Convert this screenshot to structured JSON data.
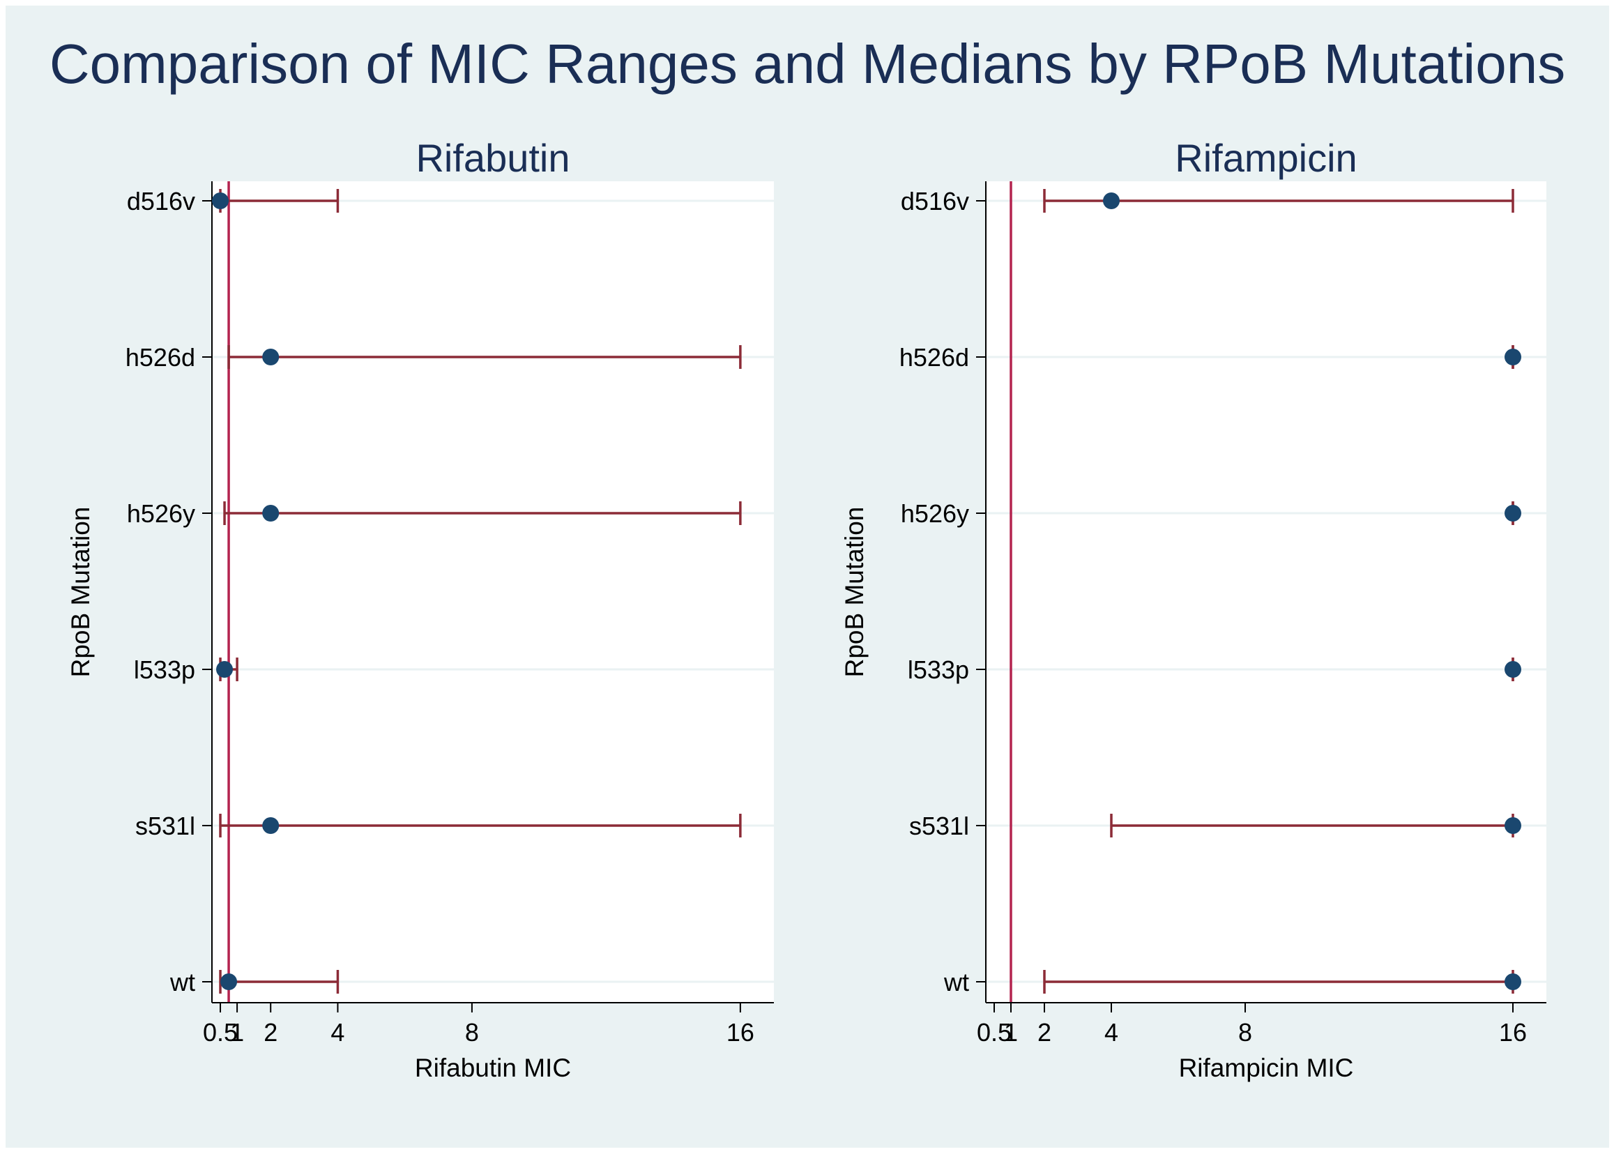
{
  "title": "Comparison of MIC Ranges and Medians by RPoB Mutations",
  "colors": {
    "background": "#eaf2f3",
    "plot_background": "#ffffff",
    "title": "#1a2e55",
    "reference_line": "#b4234f",
    "range_line": "#8c2b37",
    "median_marker": "#1a476f"
  },
  "chart_data": [
    {
      "type": "range-dot",
      "title": "Rifabutin",
      "xlabel": "Rifabutin MIC",
      "ylabel": "RpoB Mutation",
      "xlim": [
        0.25,
        17
      ],
      "xticks": [
        0.5,
        1,
        2,
        4,
        8,
        16
      ],
      "xtick_labels": [
        "0.5",
        "1",
        "2",
        "4",
        "8",
        "16"
      ],
      "reference_line": 0.75,
      "categories": [
        "d516v",
        "h526d",
        "h526y",
        "l533p",
        "s531l",
        "wt"
      ],
      "series": [
        {
          "name": "min",
          "values": [
            0.5,
            0.75,
            0.625,
            0.5,
            0.5,
            0.5
          ]
        },
        {
          "name": "median",
          "values": [
            0.5,
            2,
            2,
            0.625,
            2,
            0.75
          ]
        },
        {
          "name": "max",
          "values": [
            4,
            16,
            16,
            1,
            16,
            4
          ]
        }
      ]
    },
    {
      "type": "range-dot",
      "title": "Rifampicin",
      "xlabel": "Rifampicin MIC",
      "ylabel": "RpoB Mutation",
      "xlim": [
        0.25,
        17
      ],
      "xticks": [
        0.5,
        1,
        2,
        4,
        8,
        16
      ],
      "xtick_labels": [
        "0.5",
        "1",
        "2",
        "4",
        "8",
        "16"
      ],
      "reference_line": 1,
      "categories": [
        "d516v",
        "h526d",
        "h526y",
        "l533p",
        "s531l",
        "wt"
      ],
      "series": [
        {
          "name": "min",
          "values": [
            2,
            16,
            16,
            16,
            4,
            2
          ]
        },
        {
          "name": "median",
          "values": [
            4,
            16,
            16,
            16,
            16,
            16
          ]
        },
        {
          "name": "max",
          "values": [
            16,
            16,
            16,
            16,
            16,
            16
          ]
        }
      ]
    }
  ]
}
